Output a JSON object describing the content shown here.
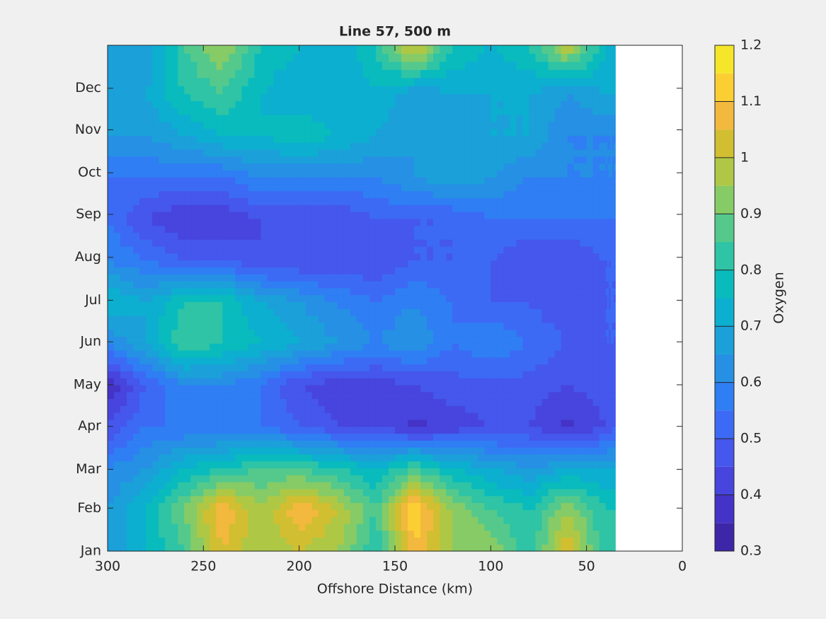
{
  "chart_data": {
    "type": "contourf",
    "title": "Line 57, 500 m",
    "xlabel": "Offshore Distance (km)",
    "colorbar_label": "Oxygen",
    "xlim": [
      300,
      0
    ],
    "xticks": [
      300,
      250,
      200,
      150,
      100,
      50,
      0
    ],
    "ylim": [
      0,
      365
    ],
    "yticks": [
      {
        "value": 0,
        "label": "Jan"
      },
      {
        "value": 31,
        "label": "Feb"
      },
      {
        "value": 59,
        "label": "Mar"
      },
      {
        "value": 90,
        "label": "Apr"
      },
      {
        "value": 120,
        "label": "May"
      },
      {
        "value": 151,
        "label": "Jun"
      },
      {
        "value": 181,
        "label": "Jul"
      },
      {
        "value": 212,
        "label": "Aug"
      },
      {
        "value": 243,
        "label": "Sep"
      },
      {
        "value": 273,
        "label": "Oct"
      },
      {
        "value": 304,
        "label": "Nov"
      },
      {
        "value": 334,
        "label": "Dec"
      }
    ],
    "x": [
      300,
      280,
      260,
      240,
      220,
      200,
      180,
      160,
      140,
      120,
      100,
      80,
      60,
      40,
      35
    ],
    "y": [
      0,
      30,
      60,
      90,
      120,
      150,
      180,
      210,
      240,
      270,
      300,
      330,
      365
    ],
    "z": [
      [
        0.65,
        0.75,
        0.85,
        1.05,
        0.95,
        1.0,
        0.95,
        0.8,
        1.1,
        0.95,
        0.95,
        0.8,
        1.05,
        0.8,
        0.8
      ],
      [
        0.65,
        0.75,
        0.9,
        1.1,
        0.95,
        1.1,
        1.0,
        0.85,
        1.15,
        0.95,
        0.85,
        0.8,
        0.95,
        0.8,
        0.8
      ],
      [
        0.6,
        0.65,
        0.75,
        0.8,
        0.85,
        0.85,
        0.8,
        0.75,
        0.85,
        0.75,
        0.7,
        0.65,
        0.7,
        0.7,
        0.7
      ],
      [
        0.45,
        0.55,
        0.55,
        0.55,
        0.55,
        0.5,
        0.45,
        0.45,
        0.38,
        0.42,
        0.45,
        0.45,
        0.38,
        0.45,
        0.5
      ],
      [
        0.35,
        0.5,
        0.6,
        0.6,
        0.55,
        0.45,
        0.42,
        0.42,
        0.45,
        0.48,
        0.48,
        0.48,
        0.45,
        0.48,
        0.5
      ],
      [
        0.6,
        0.7,
        0.85,
        0.8,
        0.75,
        0.7,
        0.65,
        0.6,
        0.65,
        0.55,
        0.6,
        0.55,
        0.5,
        0.5,
        0.5
      ],
      [
        0.75,
        0.7,
        0.8,
        0.8,
        0.7,
        0.65,
        0.6,
        0.55,
        0.6,
        0.55,
        0.5,
        0.5,
        0.45,
        0.5,
        0.5
      ],
      [
        0.6,
        0.55,
        0.5,
        0.5,
        0.45,
        0.45,
        0.45,
        0.45,
        0.5,
        0.5,
        0.5,
        0.45,
        0.45,
        0.5,
        0.5
      ],
      [
        0.55,
        0.45,
        0.4,
        0.4,
        0.45,
        0.45,
        0.45,
        0.5,
        0.5,
        0.5,
        0.55,
        0.55,
        0.55,
        0.55,
        0.55
      ],
      [
        0.55,
        0.55,
        0.55,
        0.55,
        0.6,
        0.6,
        0.6,
        0.6,
        0.65,
        0.7,
        0.65,
        0.6,
        0.6,
        0.6,
        0.6
      ],
      [
        0.65,
        0.65,
        0.7,
        0.75,
        0.75,
        0.8,
        0.75,
        0.7,
        0.65,
        0.65,
        0.7,
        0.7,
        0.6,
        0.6,
        0.6
      ],
      [
        0.7,
        0.7,
        0.8,
        0.85,
        0.75,
        0.7,
        0.7,
        0.75,
        0.65,
        0.7,
        0.7,
        0.7,
        0.65,
        0.7,
        0.7
      ],
      [
        0.65,
        0.65,
        0.85,
        0.95,
        0.8,
        0.75,
        0.7,
        0.8,
        1.05,
        0.8,
        0.75,
        0.8,
        1.0,
        0.75,
        0.75
      ]
    ],
    "clim": [
      0.3,
      1.2
    ],
    "cticks": [
      0.3,
      0.4,
      0.5,
      0.6,
      0.7,
      0.8,
      0.9,
      1,
      1.1,
      1.2
    ],
    "colormap": [
      "#3e26a8",
      "#4433c6",
      "#4745dd",
      "#4557ec",
      "#3c6af5",
      "#2f7ef3",
      "#2690e4",
      "#1ba0d9",
      "#0cafcf",
      "#09bbbd",
      "#2ec4a5",
      "#55c98c",
      "#86cb66",
      "#aec845",
      "#d2be31",
      "#f2b93e",
      "#fbcf33",
      "#f5e62a"
    ]
  }
}
